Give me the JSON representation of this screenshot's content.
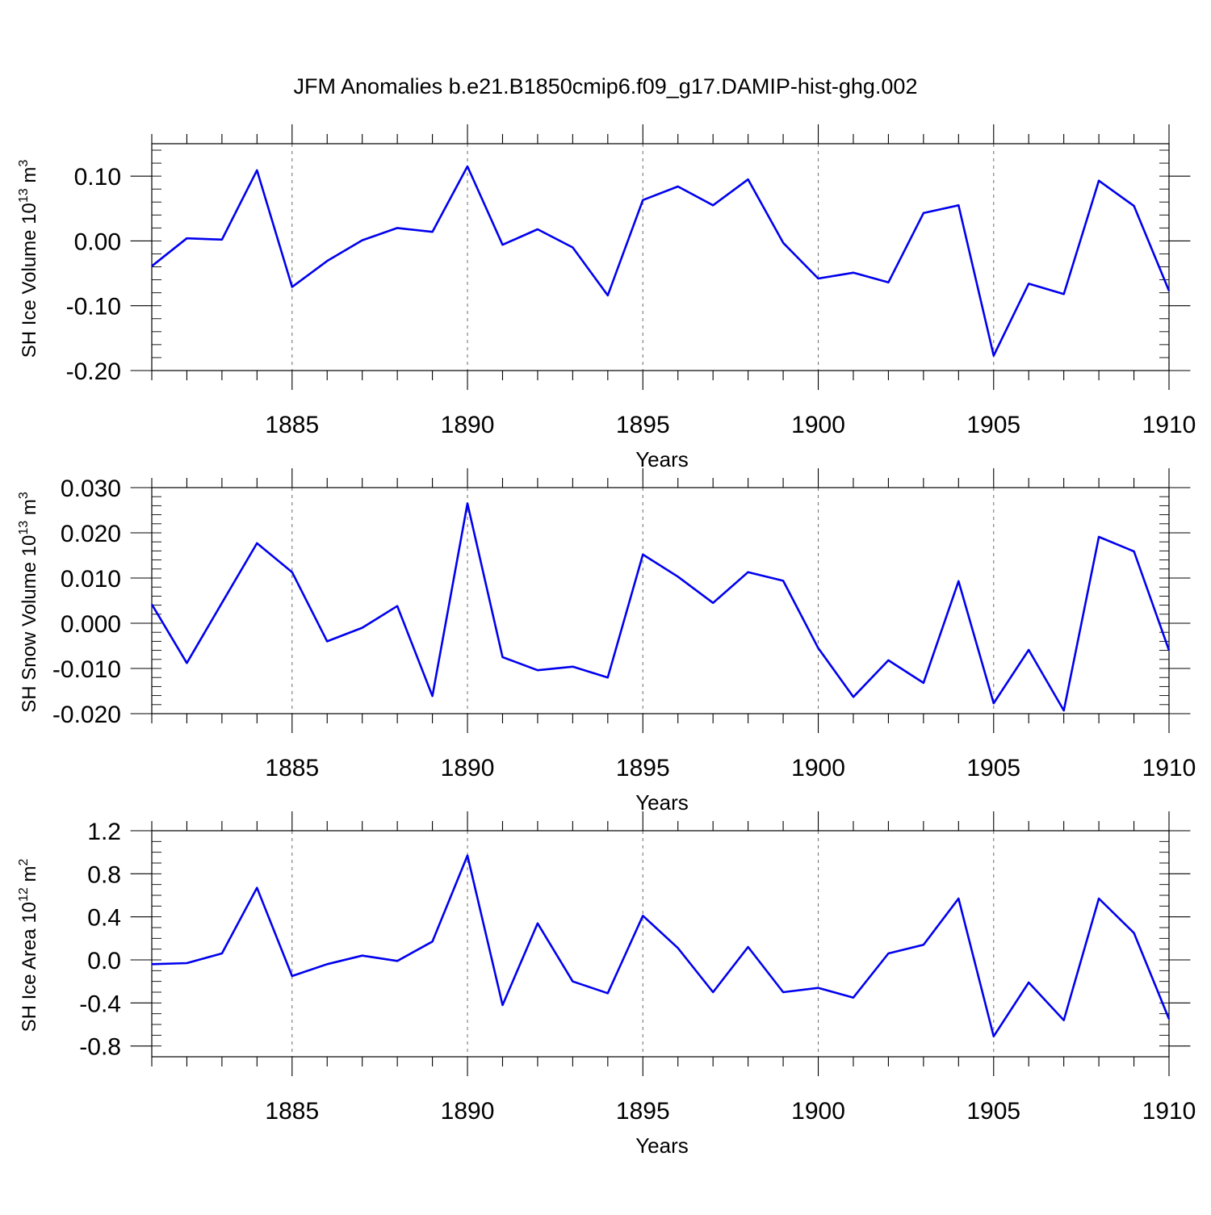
{
  "title": "JFM Anomalies b.e21.B1850cmip6.f09_g17.DAMIP-hist-ghg.002",
  "chart_data": [
    {
      "type": "line",
      "ylabel": "SH Ice Volume 10",
      "ylabel_exp": "13",
      "ylabel_unit": " m",
      "ylabel_unit_exp": "3",
      "xlabel": "Years",
      "xlim": [
        1881,
        1910
      ],
      "ylim": [
        -0.2,
        0.15
      ],
      "yticks": [
        -0.2,
        -0.1,
        0.0,
        0.1
      ],
      "ytick_labels": [
        "-0.20",
        "-0.10",
        "0.00",
        "0.10"
      ],
      "yminor_step": 0.02,
      "xticks": [
        1885,
        1890,
        1895,
        1900,
        1905,
        1910
      ],
      "xtick_labels": [
        "1885",
        "1890",
        "1895",
        "1900",
        "1905",
        "1910"
      ],
      "x": [
        1881,
        1882,
        1883,
        1884,
        1885,
        1886,
        1887,
        1888,
        1889,
        1890,
        1891,
        1892,
        1893,
        1894,
        1895,
        1896,
        1897,
        1898,
        1899,
        1900,
        1901,
        1902,
        1903,
        1904,
        1905,
        1906,
        1907,
        1908,
        1909,
        1910
      ],
      "values": [
        -0.039,
        0.004,
        0.002,
        0.109,
        -0.071,
        -0.031,
        0.001,
        0.02,
        0.014,
        0.115,
        -0.006,
        0.018,
        -0.01,
        -0.084,
        0.063,
        0.084,
        0.055,
        0.095,
        -0.003,
        -0.058,
        -0.049,
        -0.064,
        0.043,
        0.055,
        -0.177,
        -0.066,
        -0.082,
        0.093,
        0.054,
        -0.077
      ]
    },
    {
      "type": "line",
      "ylabel": "SH Snow Volume 10",
      "ylabel_exp": "13",
      "ylabel_unit": " m",
      "ylabel_unit_exp": "3",
      "xlabel": "Years",
      "xlim": [
        1881,
        1910
      ],
      "ylim": [
        -0.02,
        0.03
      ],
      "yticks": [
        -0.02,
        -0.01,
        0.0,
        0.01,
        0.02,
        0.03
      ],
      "ytick_labels": [
        "-0.020",
        "-0.010",
        "0.000",
        "0.010",
        "0.020",
        "0.030"
      ],
      "yminor_step": 0.002,
      "xticks": [
        1885,
        1890,
        1895,
        1900,
        1905,
        1910
      ],
      "xtick_labels": [
        "1885",
        "1890",
        "1895",
        "1900",
        "1905",
        "1910"
      ],
      "x": [
        1881,
        1882,
        1883,
        1884,
        1885,
        1886,
        1887,
        1888,
        1889,
        1890,
        1891,
        1892,
        1893,
        1894,
        1895,
        1896,
        1897,
        1898,
        1899,
        1900,
        1901,
        1902,
        1903,
        1904,
        1905,
        1906,
        1907,
        1908,
        1909,
        1910
      ],
      "values": [
        0.0042,
        -0.0088,
        0.0045,
        0.0177,
        0.0113,
        -0.004,
        -0.001,
        0.0038,
        -0.0161,
        0.0265,
        -0.0075,
        -0.0104,
        -0.0096,
        -0.012,
        0.0152,
        0.0103,
        0.0045,
        0.0113,
        0.0094,
        -0.0055,
        -0.0163,
        -0.0082,
        -0.0132,
        0.0093,
        -0.0177,
        -0.0059,
        -0.0193,
        0.0191,
        0.0159,
        -0.006
      ]
    },
    {
      "type": "line",
      "ylabel": "SH Ice Area 10",
      "ylabel_exp": "12",
      "ylabel_unit": " m",
      "ylabel_unit_exp": "2",
      "xlabel": "Years",
      "xlim": [
        1881,
        1910
      ],
      "ylim": [
        -0.9,
        1.2
      ],
      "yticks": [
        -0.8,
        -0.4,
        0.0,
        0.4,
        0.8,
        1.2
      ],
      "ytick_labels": [
        "-0.8",
        "-0.4",
        "0.0",
        "0.4",
        "0.8",
        "1.2"
      ],
      "yminor_step": 0.1,
      "xticks": [
        1885,
        1890,
        1895,
        1900,
        1905,
        1910
      ],
      "xtick_labels": [
        "1885",
        "1890",
        "1895",
        "1900",
        "1905",
        "1910"
      ],
      "x": [
        1881,
        1882,
        1883,
        1884,
        1885,
        1886,
        1887,
        1888,
        1889,
        1890,
        1891,
        1892,
        1893,
        1894,
        1895,
        1896,
        1897,
        1898,
        1899,
        1900,
        1901,
        1902,
        1903,
        1904,
        1905,
        1906,
        1907,
        1908,
        1909,
        1910
      ],
      "values": [
        -0.04,
        -0.03,
        0.06,
        0.67,
        -0.15,
        -0.04,
        0.04,
        -0.01,
        0.17,
        0.97,
        -0.42,
        0.34,
        -0.2,
        -0.31,
        0.41,
        0.11,
        -0.3,
        0.12,
        -0.3,
        -0.26,
        -0.35,
        0.06,
        0.14,
        0.57,
        -0.71,
        -0.21,
        -0.56,
        0.57,
        0.25,
        -0.55
      ]
    }
  ]
}
